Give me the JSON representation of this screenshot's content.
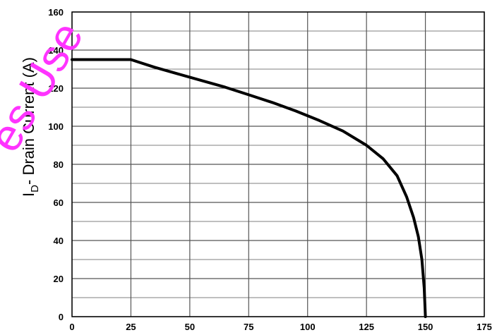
{
  "chart_data": {
    "type": "line",
    "title": "",
    "ylabel": {
      "main": "I",
      "sub": "D",
      "rest": "- Drain Current (A)"
    },
    "xlabel": "",
    "xlim": [
      0,
      175
    ],
    "ylim": [
      0,
      160
    ],
    "x_ticks": [
      "0",
      "25",
      "50",
      "75",
      "100",
      "125",
      "150",
      "175"
    ],
    "y_ticks": [
      "0",
      "20",
      "40",
      "60",
      "80",
      "100",
      "120",
      "140",
      "160"
    ],
    "grid": true,
    "minor_grid_y": true,
    "series": [
      {
        "x": [
          0,
          25,
          35,
          45,
          55,
          65,
          75,
          85,
          95,
          105,
          115,
          125,
          132,
          138,
          142,
          145,
          147,
          148.5,
          149.5,
          150
        ],
        "y": [
          135,
          135,
          131,
          127.5,
          124,
          120.5,
          116.5,
          112.5,
          108,
          103,
          97.5,
          90,
          83,
          74,
          63,
          52,
          42,
          30,
          15,
          0
        ],
        "color": "#000000"
      }
    ]
  },
  "watermark": {
    "text": "es Use",
    "color": "#ff33ff"
  }
}
